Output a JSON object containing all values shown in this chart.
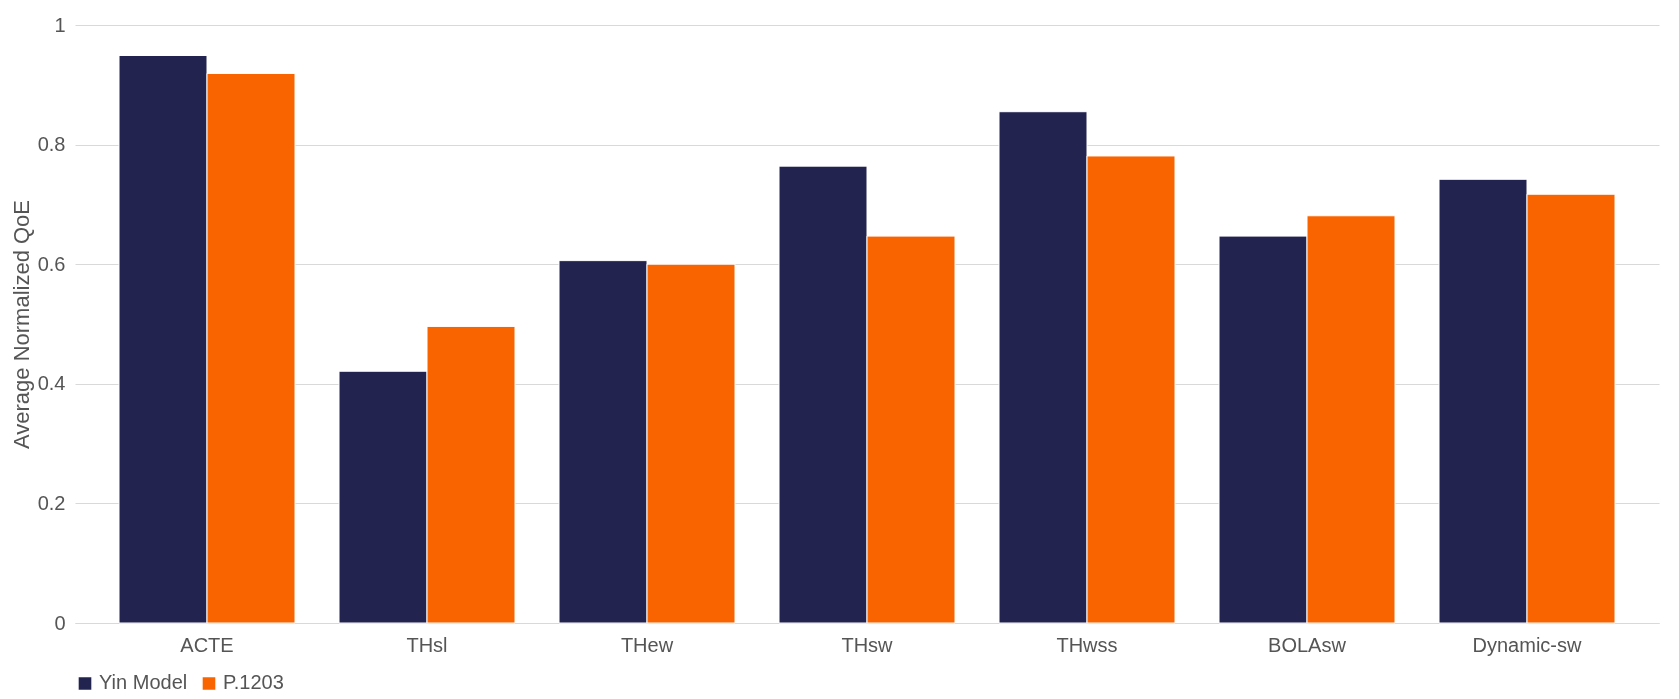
{
  "chart_data": {
    "type": "bar",
    "ylabel": "Average Normalized QoE",
    "categories": [
      "ACTE",
      "THsl",
      "THew",
      "THsw",
      "THwss",
      "BOLAsw",
      "Dynamic-sw"
    ],
    "series": [
      {
        "name": "Yin Model",
        "color": "#232350",
        "values": [
          0.949,
          0.421,
          0.606,
          0.764,
          0.855,
          0.647,
          0.742
        ]
      },
      {
        "name": "P.1203",
        "color": "#fa6400",
        "values": [
          0.919,
          0.496,
          0.6,
          0.647,
          0.781,
          0.681,
          0.717
        ]
      }
    ],
    "ylim": [
      0,
      1
    ],
    "yticks": [
      0,
      0.2,
      0.4,
      0.6,
      0.8,
      1
    ],
    "grid": "y",
    "legend": "bottom"
  }
}
